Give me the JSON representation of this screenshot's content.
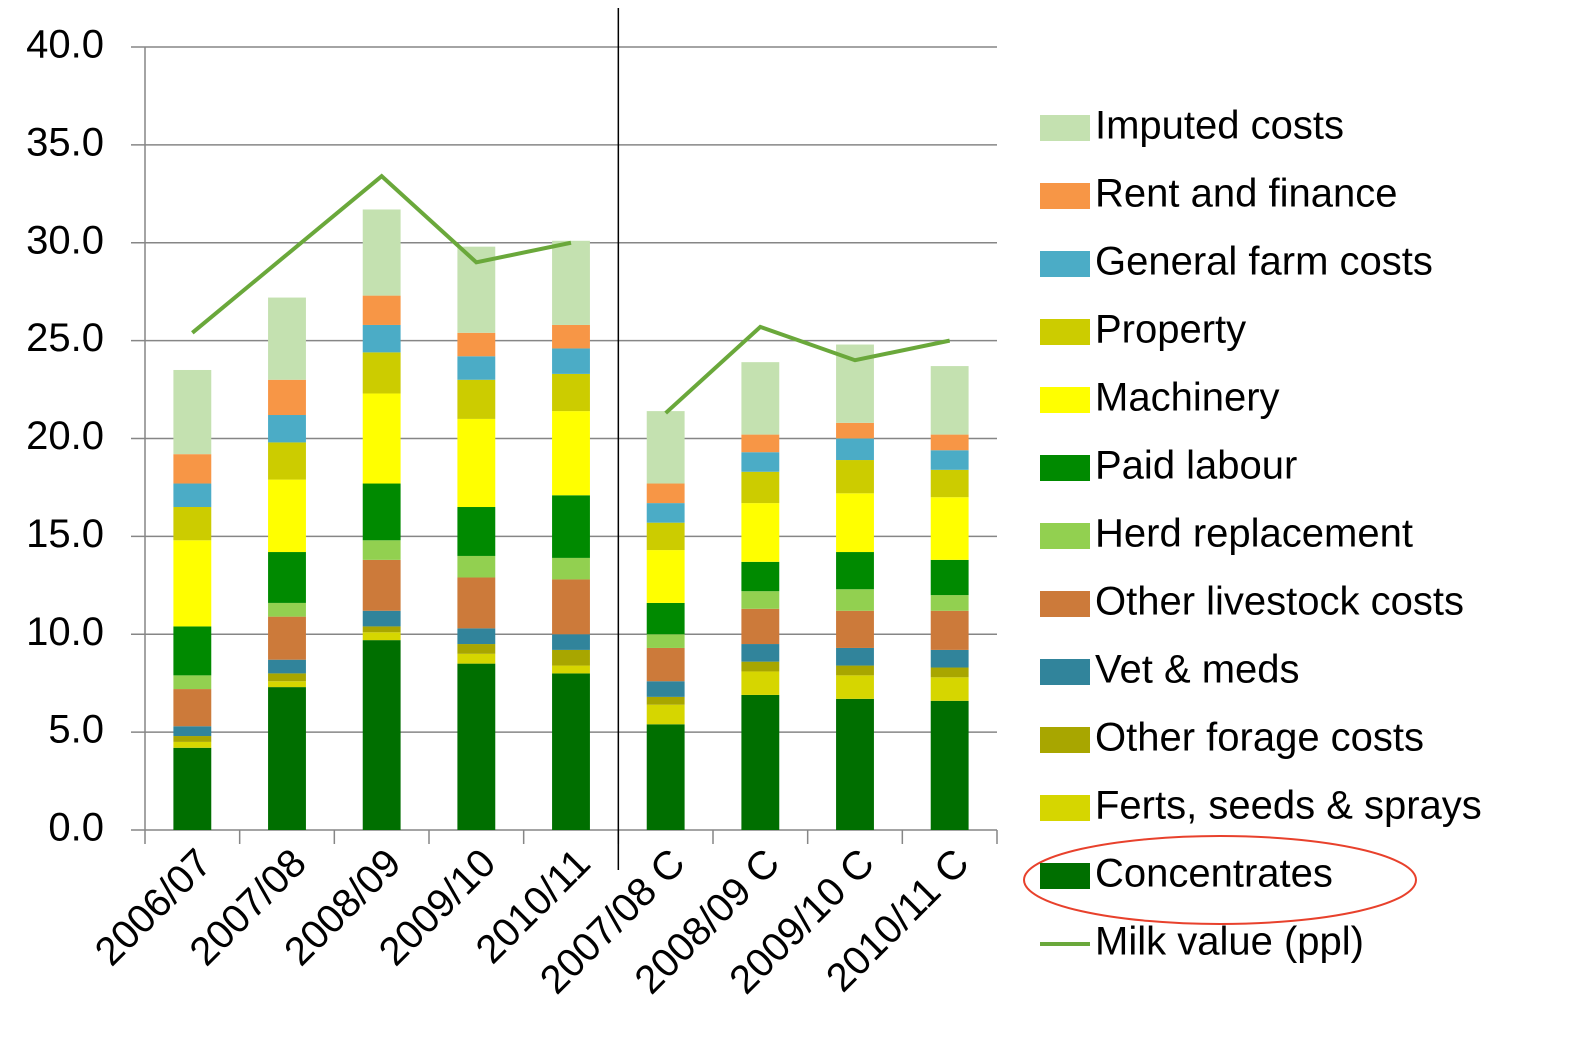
{
  "chart_data": {
    "type": "bar",
    "stacked": true,
    "categories": [
      "2006/07",
      "2007/08",
      "2008/09",
      "2009/10",
      "2010/11",
      "2007/08 C",
      "2008/09 C",
      "2009/10 C",
      "2010/11 C"
    ],
    "divider_index": 5,
    "series": [
      {
        "name": "Concentrates",
        "color": "#006f00",
        "values": [
          4.2,
          7.3,
          9.7,
          8.5,
          8.0,
          5.4,
          6.9,
          6.7,
          6.6
        ]
      },
      {
        "name": "Ferts, seeds & sprays",
        "color": "#d6d600",
        "values": [
          0.3,
          0.3,
          0.4,
          0.5,
          0.4,
          1.0,
          1.2,
          1.2,
          1.2
        ]
      },
      {
        "name": "Other forage costs",
        "color": "#a8a600",
        "values": [
          0.3,
          0.4,
          0.3,
          0.5,
          0.8,
          0.4,
          0.5,
          0.5,
          0.5
        ]
      },
      {
        "name": "Vet & meds",
        "color": "#31849b",
        "values": [
          0.5,
          0.7,
          0.8,
          0.8,
          0.8,
          0.8,
          0.9,
          0.9,
          0.9
        ]
      },
      {
        "name": "Other livestock costs",
        "color": "#cc7a3a",
        "values": [
          1.9,
          2.2,
          2.6,
          2.6,
          2.8,
          1.7,
          1.8,
          1.9,
          2.0
        ]
      },
      {
        "name": "Herd replacement",
        "color": "#92d050",
        "values": [
          0.7,
          0.7,
          1.0,
          1.1,
          1.1,
          0.7,
          0.9,
          1.1,
          0.8
        ]
      },
      {
        "name": "Paid labour",
        "color": "#008a00",
        "values": [
          2.5,
          2.6,
          2.9,
          2.5,
          3.2,
          1.6,
          1.5,
          1.9,
          1.8
        ]
      },
      {
        "name": "Machinery",
        "color": "#ffff00",
        "values": [
          4.4,
          3.7,
          4.6,
          4.5,
          4.3,
          2.7,
          3.0,
          3.0,
          3.2
        ]
      },
      {
        "name": "Property",
        "color": "#cccc00",
        "values": [
          1.7,
          1.9,
          2.1,
          2.0,
          1.9,
          1.4,
          1.6,
          1.7,
          1.4
        ]
      },
      {
        "name": "General farm costs",
        "color": "#4bacc6",
        "values": [
          1.2,
          1.4,
          1.4,
          1.2,
          1.3,
          1.0,
          1.0,
          1.1,
          1.0
        ]
      },
      {
        "name": "Rent and finance",
        "color": "#f79646",
        "values": [
          1.5,
          1.8,
          1.5,
          1.2,
          1.2,
          1.0,
          0.9,
          0.8,
          0.8
        ]
      },
      {
        "name": "Imputed costs",
        "color": "#c4e1b0",
        "values": [
          4.3,
          4.2,
          4.4,
          4.4,
          4.3,
          3.7,
          3.7,
          4.0,
          3.5
        ]
      }
    ],
    "line_series": {
      "name": "Milk value (ppl)",
      "color": "#6aa83b",
      "values": [
        25.4,
        29.4,
        33.4,
        29.0,
        30.0,
        21.3,
        25.7,
        24.0,
        25.0
      ]
    },
    "ylim": [
      0,
      40
    ],
    "yticks": [
      {
        "value": 0,
        "label": "0.0"
      },
      {
        "value": 5,
        "label": "5.0"
      },
      {
        "value": 10,
        "label": "10.0"
      },
      {
        "value": 15,
        "label": "15.0"
      },
      {
        "value": 20,
        "label": "20.0"
      },
      {
        "value": 25,
        "label": "25.0"
      },
      {
        "value": 30,
        "label": "30.0"
      },
      {
        "value": 35,
        "label": "35.0"
      },
      {
        "value": 40,
        "label": "40.0"
      }
    ],
    "grid": true
  }
}
